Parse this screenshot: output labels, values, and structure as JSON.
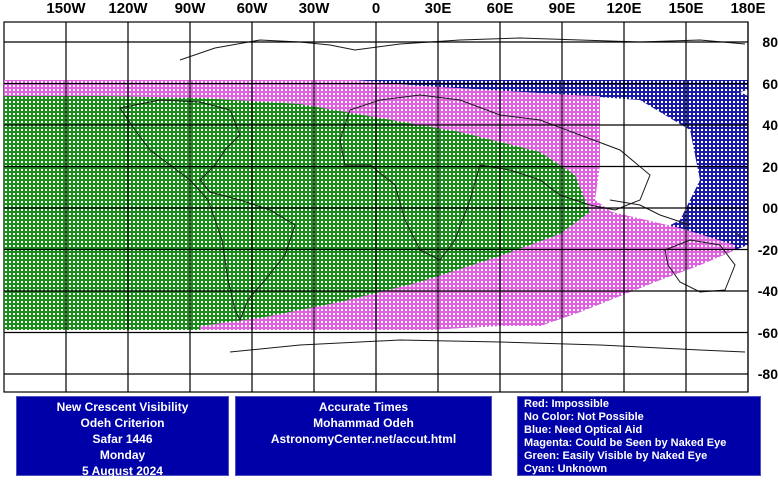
{
  "lon_labels": [
    "150W",
    "120W",
    "90W",
    "60W",
    "30W",
    "0",
    "30E",
    "60E",
    "90E",
    "120E",
    "150E",
    "180E"
  ],
  "lat_labels": [
    "80",
    "60",
    "40",
    "20",
    "00",
    "-20",
    "-40",
    "-60",
    "-80"
  ],
  "info": {
    "lines": [
      "New Crescent Visibility",
      "Odeh Criterion",
      "Safar 1446",
      "Monday",
      "5 August 2024"
    ]
  },
  "credit": {
    "lines": [
      "Accurate Times",
      "Mohammad Odeh",
      "AstronomyCenter.net/accut.html"
    ]
  },
  "legend": {
    "lines": [
      "Red: Impossible",
      "No Color: Not Possible",
      "Blue: Need Optical Aid",
      "Magenta: Could be Seen by Naked Eye",
      "Green: Easily Visible by Naked Eye",
      "Cyan: Unknown"
    ]
  },
  "colors": {
    "green": "#1a8c1a",
    "magenta": "#e060e0",
    "blue": "#1a1aa8",
    "grid": "#000000"
  }
}
